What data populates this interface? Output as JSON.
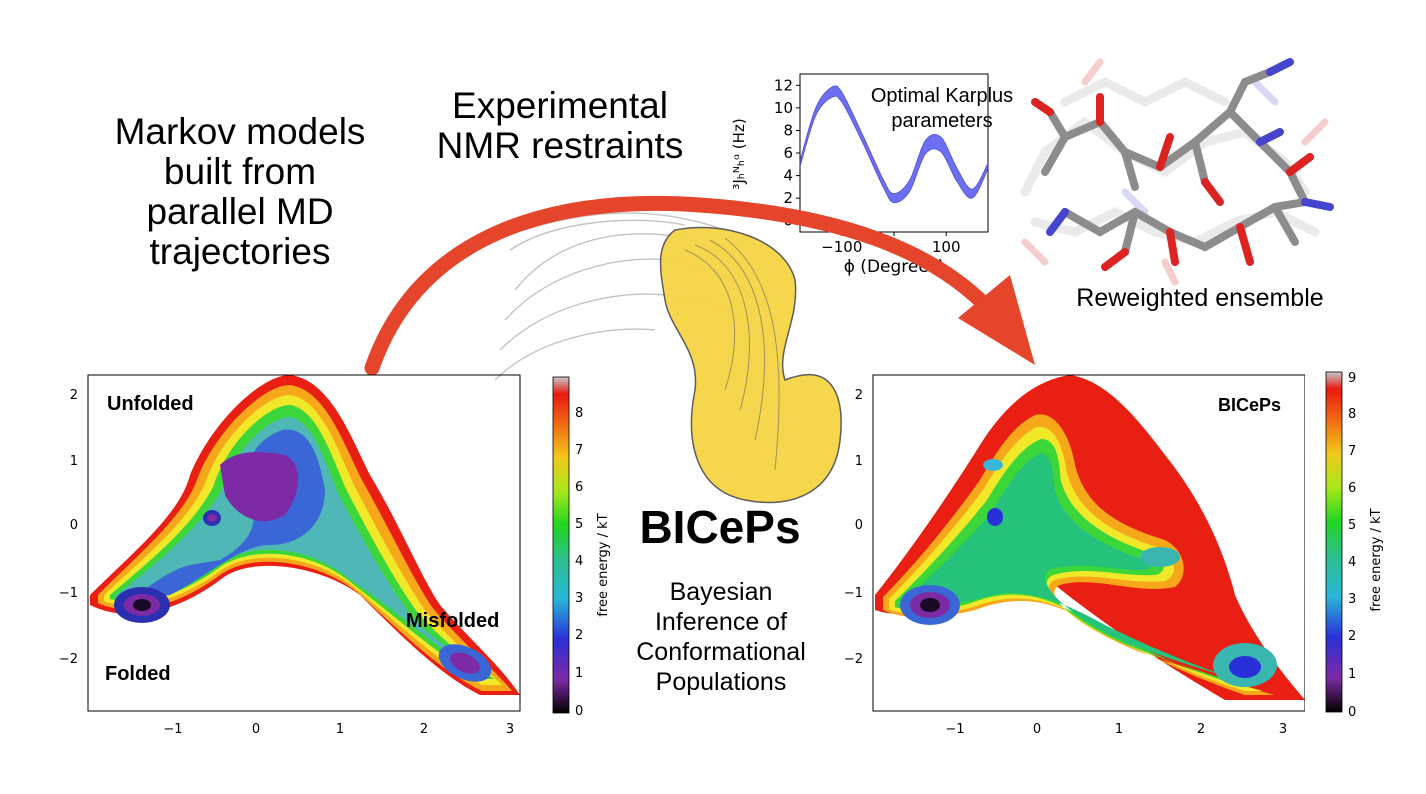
{
  "labels": {
    "markov": [
      "Markov models",
      "built from",
      "parallel MD",
      "trajectories"
    ],
    "experimental": [
      "Experimental",
      "NMR restraints"
    ],
    "karplus": [
      "Optimal Karplus",
      "parameters"
    ],
    "reweighted": "Reweighted ensemble",
    "biceps": "BICePs",
    "bayes": [
      "Bayesian",
      "Inference of",
      "Conformational",
      "Populations"
    ]
  },
  "left_plot": {
    "regions": [
      "Unfolded",
      "Folded",
      "Misfolded"
    ],
    "x_ticks": [
      "−1",
      "0",
      "1",
      "2",
      "3"
    ],
    "y_ticks": [
      "2",
      "1",
      "0",
      "−1",
      "−2"
    ]
  },
  "right_plot": {
    "badge": "BICePs",
    "x_ticks": [
      "−1",
      "0",
      "1",
      "2",
      "3"
    ],
    "y_ticks": [
      "2",
      "1",
      "0",
      "−1",
      "−2"
    ]
  },
  "colorbar": {
    "label": "free energy / kT",
    "left_ticks": [
      "0",
      "1",
      "2",
      "3",
      "4",
      "5",
      "6",
      "7",
      "8"
    ],
    "right_ticks": [
      "0",
      "1",
      "2",
      "3",
      "4",
      "5",
      "6",
      "7",
      "8",
      "9"
    ]
  },
  "chart_data": {
    "type": "area",
    "x": [
      -180,
      -150,
      -120,
      -100,
      -60,
      -20,
      0,
      30,
      60,
      90,
      120,
      150,
      180
    ],
    "upper": [
      5.3,
      10.0,
      11.8,
      11.4,
      7.6,
      3.6,
      2.4,
      3.6,
      7.1,
      7.4,
      4.7,
      2.8,
      5.1
    ],
    "lower": [
      4.8,
      9.3,
      10.9,
      10.5,
      6.9,
      2.9,
      1.6,
      2.6,
      5.9,
      6.1,
      3.5,
      2.0,
      4.6
    ],
    "xlabel": "ϕ (Degrees)",
    "ylabel": "³Jₕᴺₕᵅ (Hz)",
    "x_ticks": [
      "−100",
      "0",
      "100"
    ],
    "y_ticks": [
      "12",
      "10",
      "8",
      "6",
      "4",
      "2",
      "0"
    ],
    "xlim": [
      -180,
      180
    ],
    "ylim": [
      -1,
      13
    ],
    "fill_color": "#5555ee"
  }
}
